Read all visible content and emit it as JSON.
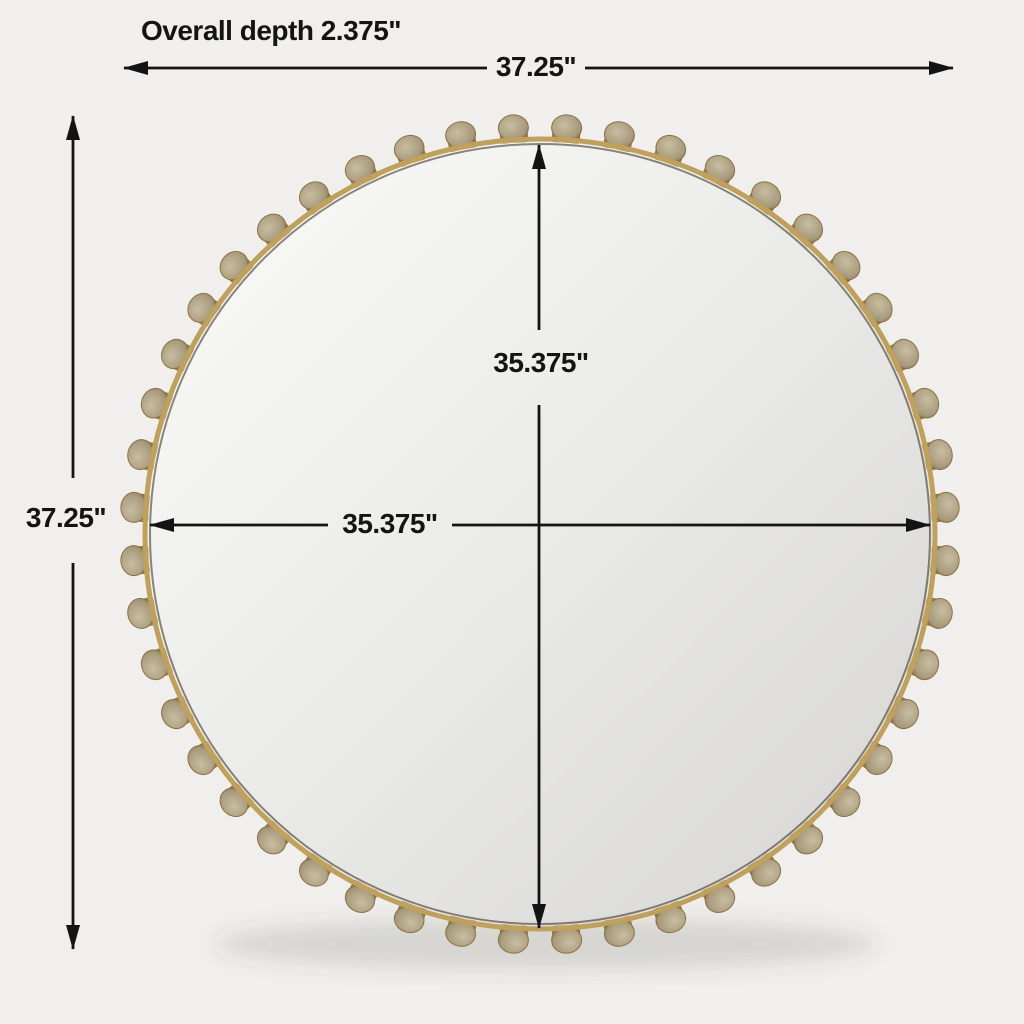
{
  "page": {
    "background": "#f0efed",
    "text_color": "#141414"
  },
  "diagram": {
    "title": "Overall depth 2.375\"",
    "dimension_labels": {
      "top_width": "37.25\"",
      "left_height": "37.25\"",
      "inner_width": "35.375\"",
      "inner_height": "35.375\""
    },
    "mirror": {
      "stud_count": 48
    }
  },
  "colors": {
    "line": "#141414",
    "rim_gold": "#bfa05c",
    "rim_edge_shadow": "rgba(50,40,18,0.55)",
    "stud_gold_light": "#dfc488",
    "stud_gold": "#c2a160",
    "stud_gold_dark": "#8d7140",
    "stud_face_light": "#c9bda1",
    "stud_face": "#a89b7d",
    "stud_face_dark": "#857655",
    "glass_light": "#fbfbfa",
    "glass_mid": "#eaeae8",
    "glass_dark": "#d5d4d2",
    "shadow": "rgba(80,75,65,0.16)"
  }
}
